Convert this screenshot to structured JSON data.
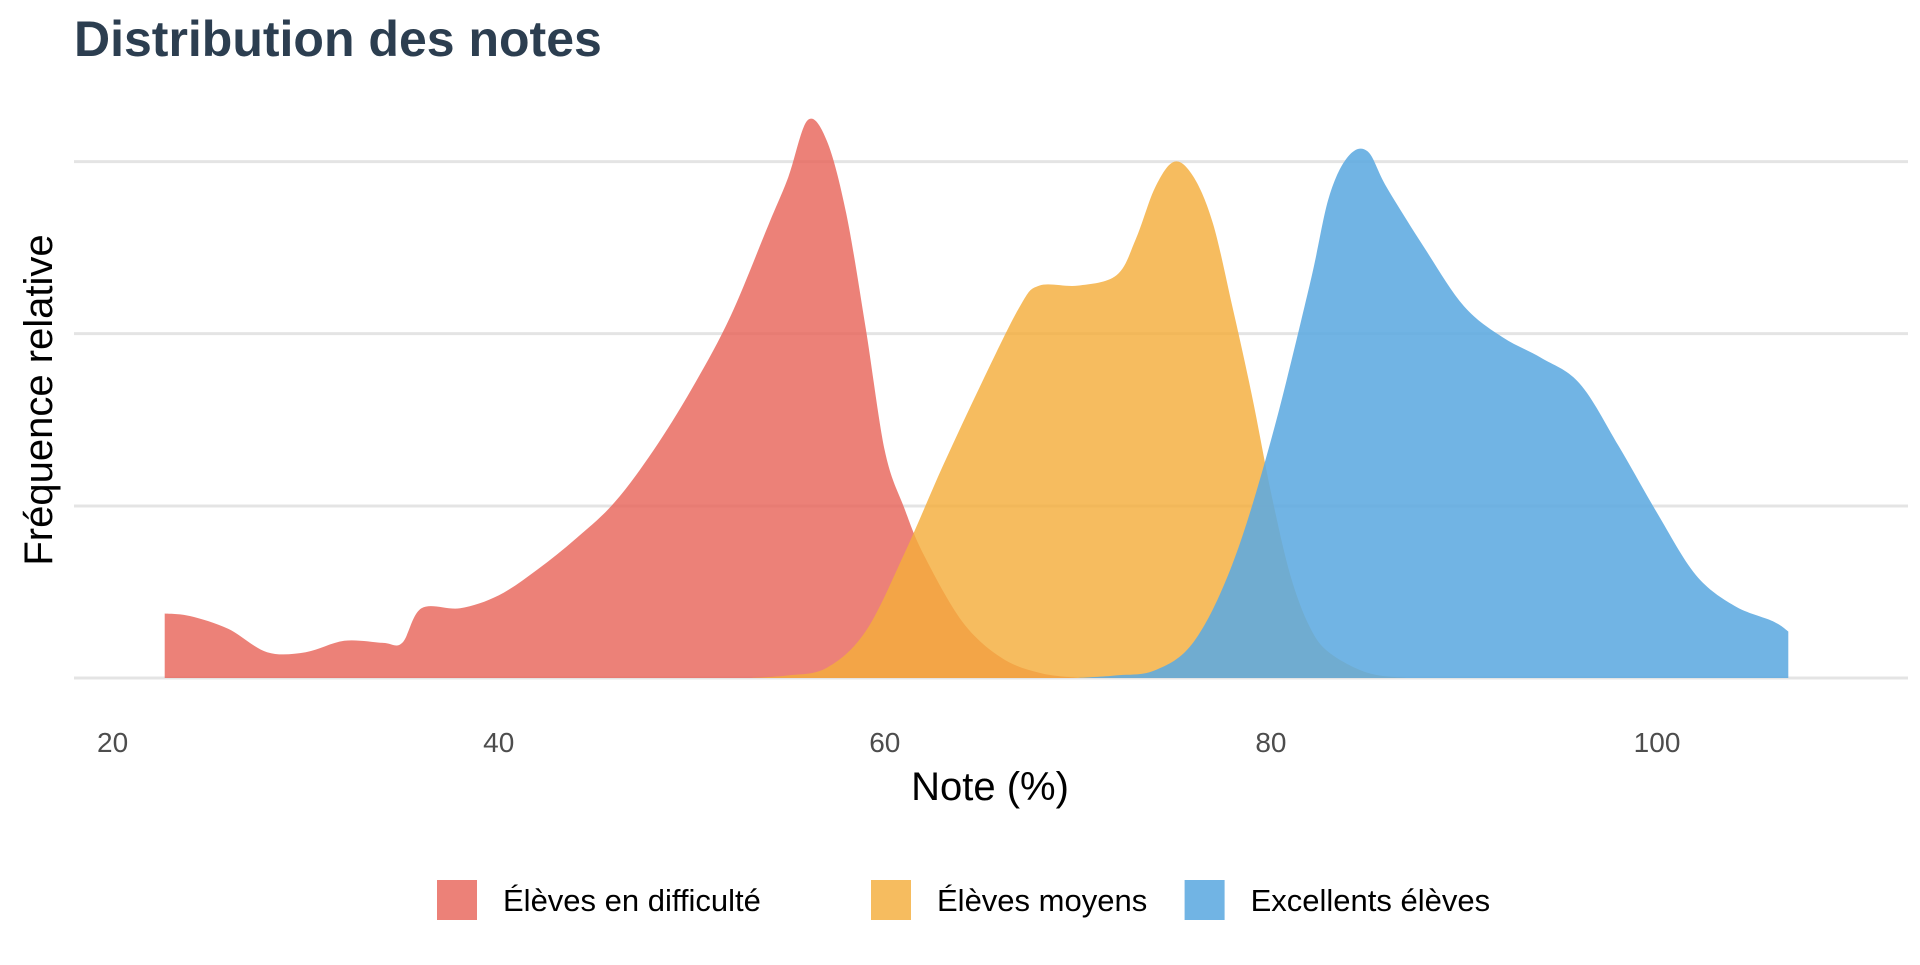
{
  "chart_data": {
    "type": "area",
    "title": "Distribution des notes",
    "xlabel": "Note (%)",
    "ylabel": "Fréquence relative",
    "xlim": [
      18,
      113
    ],
    "ylim": [
      0,
      1.1
    ],
    "x_ticks": [
      20,
      40,
      60,
      80,
      100
    ],
    "y_gridlines": [
      0,
      0.333,
      0.667,
      1.0
    ],
    "y_tick_labels_shown": false,
    "grid": "horizontal",
    "legend_position": "bottom",
    "series": [
      {
        "name": "Élèves en difficulté",
        "color": "#E8655A",
        "opacity": 0.82,
        "points": [
          [
            22.7,
            0.125
          ],
          [
            24,
            0.12
          ],
          [
            26,
            0.095
          ],
          [
            28,
            0.05
          ],
          [
            30,
            0.05
          ],
          [
            32,
            0.072
          ],
          [
            34,
            0.068
          ],
          [
            35,
            0.068
          ],
          [
            36,
            0.135
          ],
          [
            38,
            0.135
          ],
          [
            40,
            0.16
          ],
          [
            42,
            0.21
          ],
          [
            44,
            0.27
          ],
          [
            46,
            0.34
          ],
          [
            48,
            0.44
          ],
          [
            50,
            0.56
          ],
          [
            52,
            0.7
          ],
          [
            54,
            0.88
          ],
          [
            55,
            0.97
          ],
          [
            56,
            1.08
          ],
          [
            57,
            1.04
          ],
          [
            58,
            0.9
          ],
          [
            59,
            0.68
          ],
          [
            60,
            0.44
          ],
          [
            61,
            0.33
          ],
          [
            62,
            0.24
          ],
          [
            64,
            0.11
          ],
          [
            66,
            0.04
          ],
          [
            68,
            0.01
          ],
          [
            70,
            0.0
          ]
        ]
      },
      {
        "name": "Élèves moyens",
        "color": "#F4AD3C",
        "opacity": 0.82,
        "points": [
          [
            53,
            0.0
          ],
          [
            55,
            0.005
          ],
          [
            57,
            0.02
          ],
          [
            59,
            0.09
          ],
          [
            61,
            0.24
          ],
          [
            63,
            0.41
          ],
          [
            65,
            0.57
          ],
          [
            67,
            0.72
          ],
          [
            68,
            0.76
          ],
          [
            70,
            0.76
          ],
          [
            72,
            0.78
          ],
          [
            73,
            0.85
          ],
          [
            74,
            0.95
          ],
          [
            75,
            1.0
          ],
          [
            76,
            0.97
          ],
          [
            77,
            0.88
          ],
          [
            78,
            0.72
          ],
          [
            79,
            0.55
          ],
          [
            80,
            0.36
          ],
          [
            81,
            0.2
          ],
          [
            82,
            0.1
          ],
          [
            83,
            0.05
          ],
          [
            85,
            0.01
          ],
          [
            87,
            0.0
          ]
        ]
      },
      {
        "name": "Excellents élèves",
        "color": "#5DAAE0",
        "opacity": 0.88,
        "points": [
          [
            70,
            0.0
          ],
          [
            72,
            0.005
          ],
          [
            74,
            0.015
          ],
          [
            76,
            0.07
          ],
          [
            78,
            0.22
          ],
          [
            80,
            0.46
          ],
          [
            82,
            0.76
          ],
          [
            83,
            0.93
          ],
          [
            84,
            1.01
          ],
          [
            85,
            1.02
          ],
          [
            86,
            0.95
          ],
          [
            88,
            0.83
          ],
          [
            90,
            0.72
          ],
          [
            92,
            0.66
          ],
          [
            94,
            0.62
          ],
          [
            96,
            0.57
          ],
          [
            98,
            0.45
          ],
          [
            100,
            0.32
          ],
          [
            102,
            0.2
          ],
          [
            104,
            0.14
          ],
          [
            106,
            0.11
          ],
          [
            106.8,
            0.09
          ]
        ]
      }
    ]
  }
}
